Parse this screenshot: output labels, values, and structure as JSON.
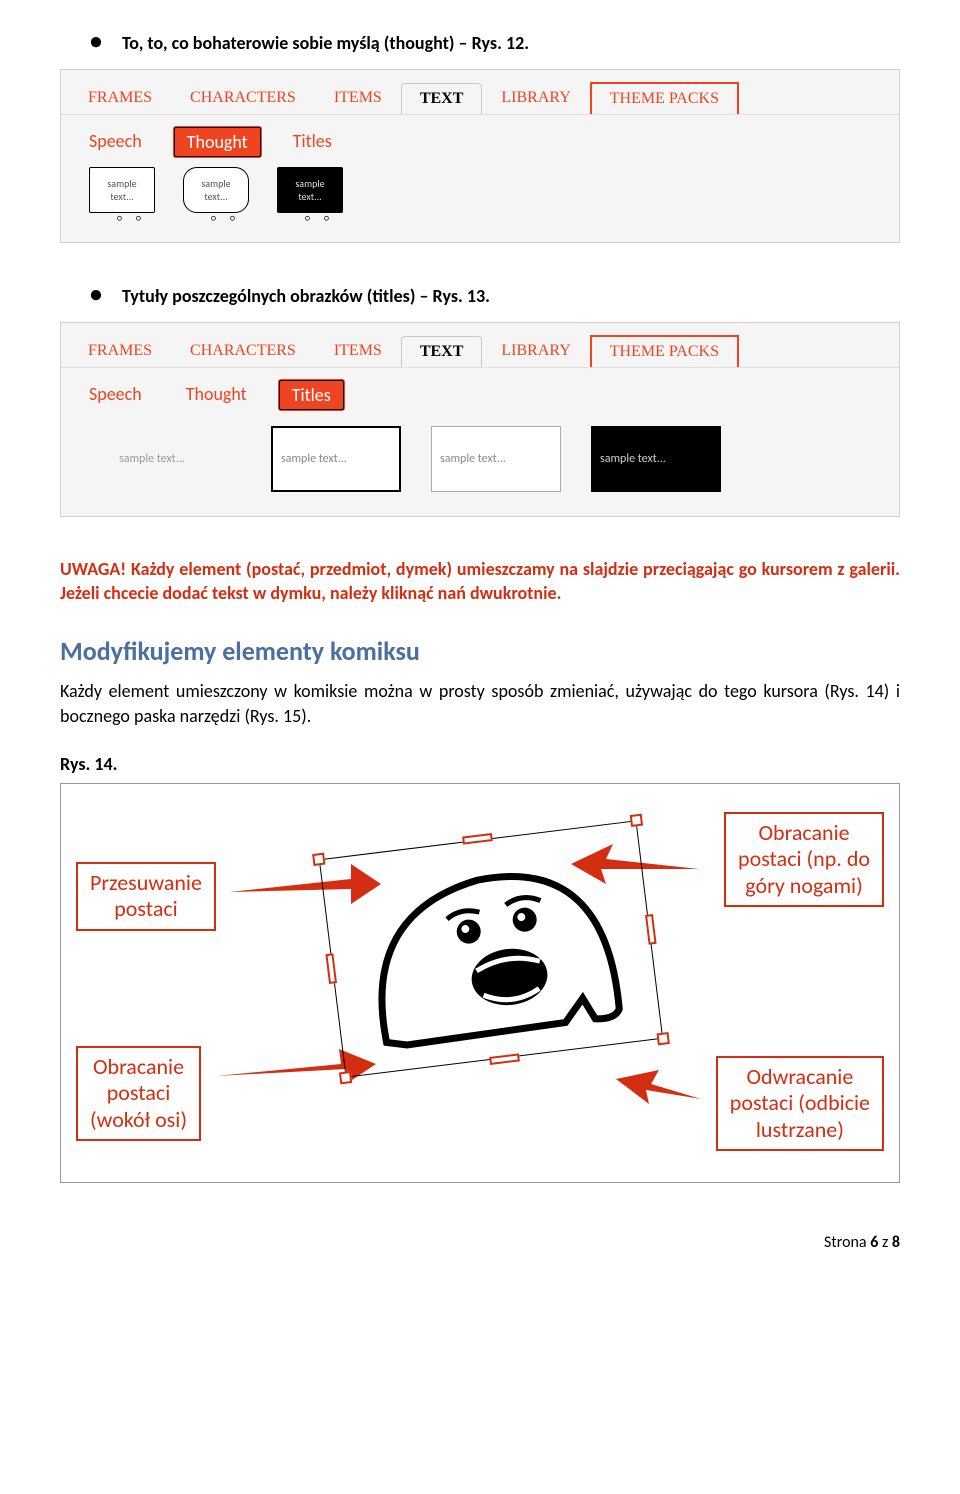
{
  "bullets": {
    "thought": "To, to, co bohaterowie sobie myślą (thought) – Rys. 12.",
    "titles": "Tytuły poszczególnych obrazków (titles) – Rys. 13."
  },
  "mainTabs": {
    "frames": "FRAMES",
    "characters": "CHARACTERS",
    "items": "ITEMS",
    "text": "TEXT",
    "library": "LIBRARY",
    "themePacks": "THEME PACKS"
  },
  "subTabs": {
    "speech": "Speech",
    "thought": "Thought",
    "titles": "Titles"
  },
  "samples": {
    "sampleTextShort": "sample\ntext...",
    "sampleTextLong": "sample text..."
  },
  "warning": "UWAGA! Każdy element (postać, przedmiot, dymek) umieszczamy na slajdzie przeciągając go kursorem z galerii. Jeżeli chcecie dodać tekst w dymku, należy kliknąć nań dwukrotnie.",
  "section": {
    "heading": "Modyfikujemy elementy komiksu",
    "body": "Każdy element umieszczony w komiksie można w prosty sposób zmieniać, używając do tego kursora (Rys. 14) i bocznego paska narzędzi (Rys. 15)."
  },
  "fig14": {
    "label": "Rys. 14.",
    "callouts": {
      "move": "Przesuwanie\npostaci",
      "flipV": "Obracanie\npostaci (np. do\ngóry nogami)",
      "rotate": "Obracanie\npostaci\n(wokół osi)",
      "mirror": "Odwracanie\npostaci (odbicie\nlustrzane)"
    }
  },
  "footer": {
    "pageLabel": "Strona",
    "pageNum": "6",
    "of": "z",
    "pageTotal": "8"
  },
  "colors": {
    "accent": "#ee4422",
    "warning": "#d42e12",
    "headingBlue": "#4a6fa0",
    "panelBg": "#f5f5f5"
  }
}
